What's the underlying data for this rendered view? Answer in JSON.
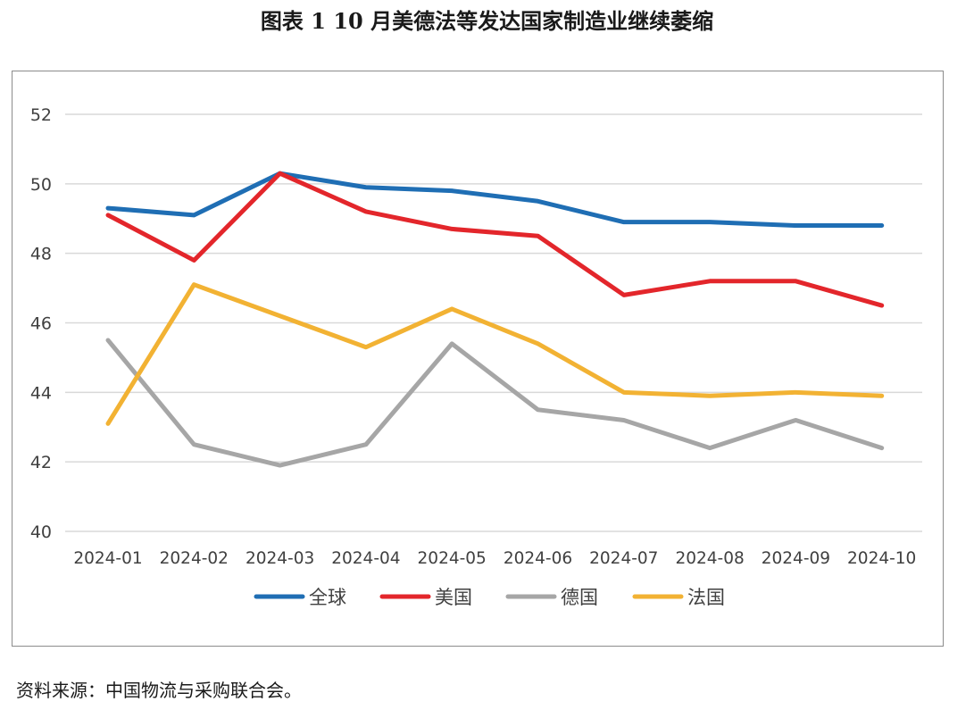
{
  "title": "图表 1 10 月美德法等发达国家制造业继续萎缩",
  "source": "资料来源：中国物流与采购联合会。",
  "chart_data": {
    "type": "line",
    "categories": [
      "2024-01",
      "2024-02",
      "2024-03",
      "2024-04",
      "2024-05",
      "2024-06",
      "2024-07",
      "2024-08",
      "2024-09",
      "2024-10"
    ],
    "ylim": [
      40,
      52
    ],
    "yticks": [
      40,
      42,
      44,
      46,
      48,
      50,
      52
    ],
    "grid": true,
    "legend_position": "bottom",
    "series": [
      {
        "name": "全球",
        "color": "#1f6eb4",
        "values": [
          49.3,
          49.1,
          50.3,
          49.9,
          49.8,
          49.5,
          48.9,
          48.9,
          48.8,
          48.8
        ]
      },
      {
        "name": "美国",
        "color": "#e3262b",
        "values": [
          49.1,
          47.8,
          50.3,
          49.2,
          48.7,
          48.5,
          46.8,
          47.2,
          47.2,
          46.5
        ]
      },
      {
        "name": "德国",
        "color": "#a6a6a6",
        "values": [
          45.5,
          42.5,
          41.9,
          42.5,
          45.4,
          43.5,
          43.2,
          42.4,
          43.2,
          42.4
        ]
      },
      {
        "name": "法国",
        "color": "#f2b233",
        "values": [
          43.1,
          47.1,
          46.2,
          45.3,
          46.4,
          45.4,
          44.0,
          43.9,
          44.0,
          43.9
        ]
      }
    ]
  }
}
